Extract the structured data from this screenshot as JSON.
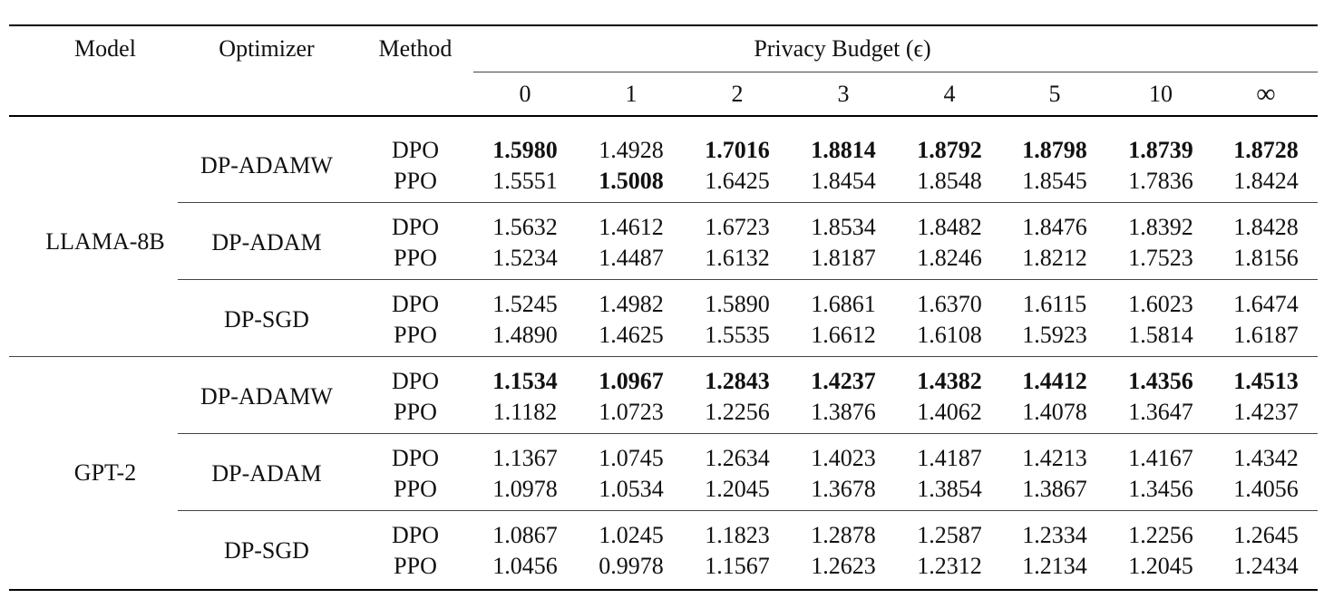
{
  "header": {
    "model": "Model",
    "optimizer": "Optimizer",
    "method": "Method",
    "budget": "Privacy Budget (ϵ)",
    "epsilons": [
      "0",
      "1",
      "2",
      "3",
      "4",
      "5",
      "10",
      "∞"
    ]
  },
  "models": [
    {
      "name": "LLAMA-8B",
      "groups": [
        {
          "optimizer": "DP-ADAMW",
          "rows": [
            {
              "method": "DPO",
              "values": [
                "1.5980",
                "1.4928",
                "1.7016",
                "1.8814",
                "1.8792",
                "1.8798",
                "1.8739",
                "1.8728"
              ],
              "bold": [
                true,
                false,
                true,
                true,
                true,
                true,
                true,
                true
              ]
            },
            {
              "method": "PPO",
              "values": [
                "1.5551",
                "1.5008",
                "1.6425",
                "1.8454",
                "1.8548",
                "1.8545",
                "1.7836",
                "1.8424"
              ],
              "bold": [
                false,
                true,
                false,
                false,
                false,
                false,
                false,
                false
              ]
            }
          ]
        },
        {
          "optimizer": "DP-ADAM",
          "rows": [
            {
              "method": "DPO",
              "values": [
                "1.5632",
                "1.4612",
                "1.6723",
                "1.8534",
                "1.8482",
                "1.8476",
                "1.8392",
                "1.8428"
              ],
              "bold": [
                false,
                false,
                false,
                false,
                false,
                false,
                false,
                false
              ]
            },
            {
              "method": "PPO",
              "values": [
                "1.5234",
                "1.4487",
                "1.6132",
                "1.8187",
                "1.8246",
                "1.8212",
                "1.7523",
                "1.8156"
              ],
              "bold": [
                false,
                false,
                false,
                false,
                false,
                false,
                false,
                false
              ]
            }
          ]
        },
        {
          "optimizer": "DP-SGD",
          "rows": [
            {
              "method": "DPO",
              "values": [
                "1.5245",
                "1.4982",
                "1.5890",
                "1.6861",
                "1.6370",
                "1.6115",
                "1.6023",
                "1.6474"
              ],
              "bold": [
                false,
                false,
                false,
                false,
                false,
                false,
                false,
                false
              ]
            },
            {
              "method": "PPO",
              "values": [
                "1.4890",
                "1.4625",
                "1.5535",
                "1.6612",
                "1.6108",
                "1.5923",
                "1.5814",
                "1.6187"
              ],
              "bold": [
                false,
                false,
                false,
                false,
                false,
                false,
                false,
                false
              ]
            }
          ]
        }
      ]
    },
    {
      "name": "GPT-2",
      "groups": [
        {
          "optimizer": "DP-ADAMW",
          "rows": [
            {
              "method": "DPO",
              "values": [
                "1.1534",
                "1.0967",
                "1.2843",
                "1.4237",
                "1.4382",
                "1.4412",
                "1.4356",
                "1.4513"
              ],
              "bold": [
                true,
                true,
                true,
                true,
                true,
                true,
                true,
                true
              ]
            },
            {
              "method": "PPO",
              "values": [
                "1.1182",
                "1.0723",
                "1.2256",
                "1.3876",
                "1.4062",
                "1.4078",
                "1.3647",
                "1.4237"
              ],
              "bold": [
                false,
                false,
                false,
                false,
                false,
                false,
                false,
                false
              ]
            }
          ]
        },
        {
          "optimizer": "DP-ADAM",
          "rows": [
            {
              "method": "DPO",
              "values": [
                "1.1367",
                "1.0745",
                "1.2634",
                "1.4023",
                "1.4187",
                "1.4213",
                "1.4167",
                "1.4342"
              ],
              "bold": [
                false,
                false,
                false,
                false,
                false,
                false,
                false,
                false
              ]
            },
            {
              "method": "PPO",
              "values": [
                "1.0978",
                "1.0534",
                "1.2045",
                "1.3678",
                "1.3854",
                "1.3867",
                "1.3456",
                "1.4056"
              ],
              "bold": [
                false,
                false,
                false,
                false,
                false,
                false,
                false,
                false
              ]
            }
          ]
        },
        {
          "optimizer": "DP-SGD",
          "rows": [
            {
              "method": "DPO",
              "values": [
                "1.0867",
                "1.0245",
                "1.1823",
                "1.2878",
                "1.2587",
                "1.2334",
                "1.2256",
                "1.2645"
              ],
              "bold": [
                false,
                false,
                false,
                false,
                false,
                false,
                false,
                false
              ]
            },
            {
              "method": "PPO",
              "values": [
                "1.0456",
                "0.9978",
                "1.1567",
                "1.2623",
                "1.2312",
                "1.2134",
                "1.2045",
                "1.2434"
              ],
              "bold": [
                false,
                false,
                false,
                false,
                false,
                false,
                false,
                false
              ]
            }
          ]
        }
      ]
    }
  ]
}
